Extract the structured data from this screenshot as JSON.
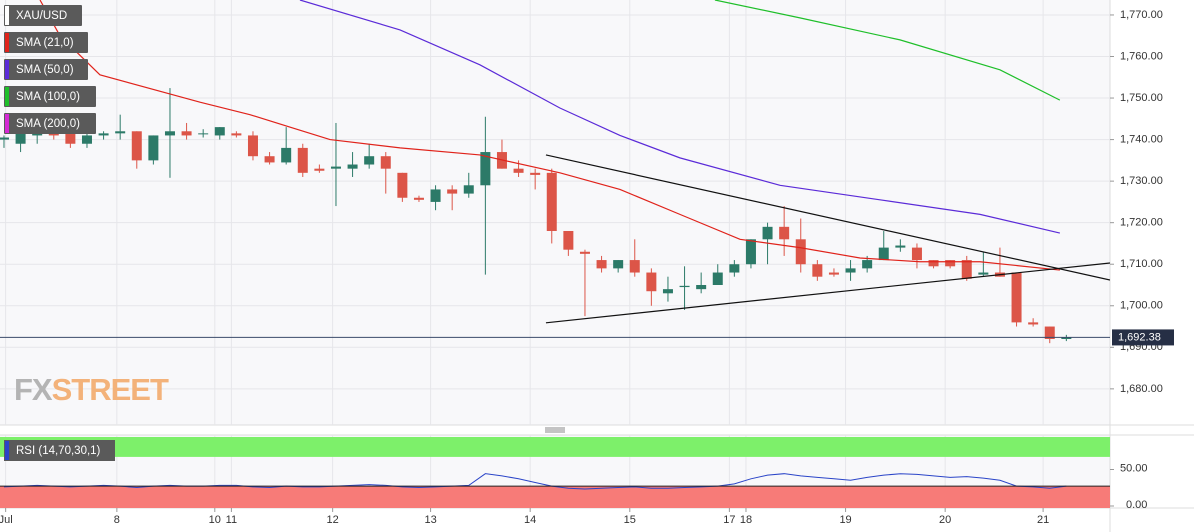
{
  "chart_data": [
    {
      "type": "candlestick",
      "name": "XAU/USD",
      "open": [
        1740,
        1739,
        1741,
        1742,
        1742,
        1739,
        1741,
        1741.5,
        1742,
        1735,
        1741,
        1742,
        1741.5,
        1741,
        1741.5,
        1741,
        1736,
        1734.5,
        1738,
        1733,
        1733,
        1733,
        1734,
        1736,
        1732,
        1726,
        1725,
        1728,
        1727,
        1729,
        1737,
        1733,
        1732,
        1732,
        1718,
        1713,
        1711,
        1709,
        1711,
        1708,
        1703,
        1704.5,
        1704,
        1705,
        1708,
        1710,
        1716,
        1719,
        1716,
        1710,
        1708,
        1708,
        1709,
        1711,
        1714,
        1714,
        1711,
        1711,
        1711,
        1707.5,
        1708,
        1708,
        1696,
        1695,
        1692
      ],
      "high": [
        1741,
        1744,
        1745,
        1743,
        1746,
        1743,
        1742,
        1746,
        1742,
        1741,
        1752.4,
        1744,
        1742.5,
        1743,
        1742,
        1742,
        1737,
        1743,
        1739,
        1734,
        1744,
        1737,
        1739,
        1737,
        1732,
        1726.5,
        1729,
        1729,
        1732,
        1745.5,
        1740,
        1735,
        1733,
        1733,
        1718,
        1713.5,
        1712,
        1711,
        1716,
        1709,
        1707,
        1709.5,
        1708,
        1710,
        1711,
        1716,
        1720,
        1724,
        1721,
        1711,
        1709,
        1711,
        1712,
        1718,
        1716,
        1715,
        1711,
        1711,
        1712,
        1713,
        1714,
        1708,
        1697,
        1695,
        1693
      ],
      "low": [
        1738,
        1737,
        1739,
        1740,
        1738,
        1738,
        1740,
        1740,
        1733,
        1734,
        1730.8,
        1740,
        1740.5,
        1740,
        1740.5,
        1735,
        1734,
        1734,
        1731,
        1732,
        1724,
        1731,
        1733,
        1727,
        1725,
        1725,
        1723,
        1723,
        1726,
        1707.5,
        1733,
        1731,
        1728,
        1715,
        1712,
        1697.5,
        1708,
        1708,
        1707,
        1700,
        1701,
        1699,
        1703,
        1705,
        1707,
        1709,
        1710,
        1712,
        1708,
        1706,
        1707,
        1706,
        1708,
        1711,
        1713,
        1709,
        1709,
        1709,
        1706,
        1707,
        1707,
        1695,
        1695,
        1691,
        1691.5
      ],
      "close": [
        1740.5,
        1742,
        1742,
        1741,
        1739,
        1741,
        1741.5,
        1742,
        1735,
        1741,
        1742,
        1741,
        1741.5,
        1743,
        1741,
        1736,
        1734.5,
        1738,
        1732,
        1732.5,
        1733.5,
        1734,
        1736,
        1733,
        1726,
        1725.5,
        1728,
        1727,
        1729,
        1737,
        1733,
        1732,
        1731.5,
        1718,
        1713.5,
        1712.5,
        1709,
        1711,
        1708,
        1703.5,
        1704,
        1704.8,
        1705,
        1708,
        1710,
        1716,
        1719,
        1716,
        1710,
        1707,
        1707.5,
        1709,
        1711,
        1714,
        1714.5,
        1711,
        1709.5,
        1709.5,
        1706.5,
        1708,
        1707,
        1696,
        1695.5,
        1692,
        1692.38
      ],
      "up_color": "#2c7a68",
      "down_color": "#dc5548",
      "series": [
        {
          "name": "SMA (21,0)",
          "color": "#e0231b",
          "x": [
            2.17,
            3.37,
            5.78,
            11.81,
            14.82,
            19.64,
            23.86,
            28.67,
            33.49,
            37.11,
            40.72,
            44.34,
            47.95,
            51.57,
            55.18,
            58.8,
            63.61
          ],
          "values": [
            1773.6,
            1765,
            1755.6,
            1749,
            1746,
            1740,
            1738,
            1736.3,
            1732,
            1728,
            1722,
            1716,
            1714,
            1711.5,
            1710.6,
            1710.6,
            1708.6
          ]
        },
        {
          "name": "SMA (50,0)",
          "color": "#5b2bd8",
          "x": [
            17.83,
            23.86,
            28.67,
            33.49,
            37.11,
            40.72,
            46.75,
            52.77,
            58.8,
            63.61
          ],
          "values": [
            1773.6,
            1766.4,
            1758,
            1747.6,
            1741,
            1735.6,
            1729,
            1725.5,
            1722,
            1717.5
          ]
        },
        {
          "name": "SMA (100,0)",
          "color": "#1fbf2a",
          "x": [
            42.83,
            47.95,
            53.98,
            60,
            63.61
          ],
          "values": [
            1773.6,
            1769.3,
            1764,
            1756.8,
            1749.5
          ]
        },
        {
          "name": "SMA (200,0)",
          "color": "#d42ad4",
          "x": [],
          "values": []
        }
      ],
      "trendlines": [
        {
          "color": "#111111",
          "x": [
            32.65,
            66.63
          ],
          "values": [
            1736.3,
            1706.2
          ]
        },
        {
          "color": "#111111",
          "x": [
            32.65,
            66.63
          ],
          "values": [
            1695.9,
            1710.3
          ]
        }
      ],
      "last_price": {
        "value": 1692.38,
        "label": "1,692.38"
      },
      "xlim": [
        -0.24,
        66.63
      ],
      "ylim": [
        1671.3,
        1773.6
      ],
      "yticks": [
        {
          "value": 1680,
          "label": "1,680.00"
        },
        {
          "value": 1690,
          "label": "1,690.00"
        },
        {
          "value": 1700,
          "label": "1,700.00"
        },
        {
          "value": 1710,
          "label": "1,710.00"
        },
        {
          "value": 1720,
          "label": "1,720.00"
        },
        {
          "value": 1730,
          "label": "1,730.00"
        },
        {
          "value": 1740,
          "label": "1,740.00"
        },
        {
          "value": 1750,
          "label": "1,750.00"
        },
        {
          "value": 1760,
          "label": "1,760.00"
        },
        {
          "value": 1770,
          "label": "1,770.00"
        }
      ],
      "xticks": [
        {
          "value": 0.1,
          "label": "Jul"
        },
        {
          "value": 6.8,
          "label": "8"
        },
        {
          "value": 12.7,
          "label": "10"
        },
        {
          "value": 13.7,
          "label": "11"
        },
        {
          "value": 19.8,
          "label": "12"
        },
        {
          "value": 25.7,
          "label": "13"
        },
        {
          "value": 31.7,
          "label": "14"
        },
        {
          "value": 37.7,
          "label": "15"
        },
        {
          "value": 43.7,
          "label": "17"
        },
        {
          "value": 44.7,
          "label": "18"
        },
        {
          "value": 50.7,
          "label": "19"
        },
        {
          "value": 56.7,
          "label": "20"
        },
        {
          "value": 62.6,
          "label": "21"
        }
      ],
      "grid": true,
      "watermark": [
        "FX",
        "STREET"
      ]
    },
    {
      "type": "line",
      "name": "RSI (14,70,30,1)",
      "color": "#2a44c8",
      "values": [
        29,
        30,
        31,
        30,
        29,
        30,
        31,
        30,
        28,
        30,
        31,
        30,
        30,
        31,
        31,
        29,
        28,
        30,
        29,
        29,
        30,
        31,
        32,
        31,
        29,
        28,
        29,
        30,
        31,
        47,
        44,
        40,
        35,
        30,
        27,
        26,
        27,
        28,
        29,
        27,
        27,
        28,
        29,
        30,
        33,
        40,
        45,
        47,
        44,
        42,
        40,
        38,
        42,
        45,
        47,
        46,
        44,
        42,
        43,
        41,
        38,
        30,
        29,
        27,
        30
      ],
      "overbought": 70,
      "oversold": 30,
      "overbought_color": "#7df06a",
      "oversold_color": "#f77b78",
      "xlim": [
        -0.24,
        66.63
      ],
      "ylim": [
        0,
        100
      ],
      "yticks": [
        {
          "value": 0,
          "label": "0.00"
        },
        {
          "value": 50,
          "label": "50.00"
        }
      ]
    }
  ]
}
